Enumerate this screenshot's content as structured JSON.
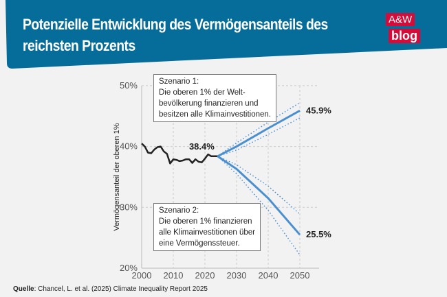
{
  "header": {
    "title": "Potenzielle Entwicklung des Vermögensanteils des reichsten Prozents",
    "logo_line1": "A&W",
    "logo_line2": "blog",
    "background": "#066c99",
    "logo_color": "#d50c3a"
  },
  "source": {
    "label": "Quelle",
    "text": ": Chancel, L. et al. (2025) Climate Inequality Report 2025"
  },
  "chart_data": {
    "type": "line",
    "title": "",
    "xlabel": "",
    "ylabel": "Vermögensanteil der oberen 1%",
    "xlim": [
      2000,
      2055
    ],
    "ylim": [
      20,
      50
    ],
    "x_ticks": [
      "2000",
      "2010",
      "2020",
      "2030",
      "2040",
      "2050"
    ],
    "y_ticks": [
      "20%",
      "30%",
      "40%",
      "50%"
    ],
    "grid": true,
    "series": [
      {
        "color": "#222222",
        "style": "solid",
        "x": [
          2000,
          2001,
          2002,
          2003,
          2004,
          2005,
          2006,
          2007,
          2008,
          2009,
          2010,
          2011,
          2012,
          2013,
          2014,
          2015,
          2016,
          2017,
          2018,
          2019,
          2020,
          2021,
          2022,
          2023,
          2024
        ],
        "y": [
          40.5,
          40.0,
          39.0,
          38.9,
          39.5,
          39.9,
          40.0,
          39.2,
          38.8,
          37.2,
          37.9,
          37.8,
          37.6,
          37.7,
          37.9,
          37.9,
          37.3,
          37.9,
          37.5,
          37.4,
          38.0,
          38.7,
          38.4,
          38.4,
          38.4
        ]
      },
      {
        "color": "#4a90d0",
        "style": "solid",
        "x": [
          2024,
          2030,
          2040,
          2050
        ],
        "y": [
          38.4,
          40.0,
          43.0,
          45.9
        ]
      },
      {
        "color": "#4a90d0",
        "style": "dotted",
        "x": [
          2024,
          2030,
          2040,
          2050
        ],
        "y": [
          38.4,
          40.6,
          44.0,
          47.2
        ]
      },
      {
        "color": "#4a90d0",
        "style": "dotted",
        "x": [
          2024,
          2030,
          2040,
          2050
        ],
        "y": [
          38.4,
          39.4,
          42.0,
          44.7
        ]
      },
      {
        "color": "#4a90d0",
        "style": "solid",
        "x": [
          2024,
          2030,
          2040,
          2050
        ],
        "y": [
          38.4,
          36.3,
          31.5,
          25.5
        ]
      },
      {
        "color": "#4a90d0",
        "style": "dotted",
        "x": [
          2024,
          2030,
          2040,
          2050
        ],
        "y": [
          38.4,
          37.0,
          33.5,
          28.9
        ]
      },
      {
        "color": "#4a90d0",
        "style": "dotted",
        "x": [
          2024,
          2030,
          2040,
          2050
        ],
        "y": [
          38.4,
          35.5,
          29.5,
          22.2
        ]
      }
    ],
    "annotations": [
      {
        "text": "38.4%",
        "x": 2020,
        "y": 38.4
      },
      {
        "text": "45.9%",
        "x": 2050,
        "y": 45.9
      },
      {
        "text": "25.5%",
        "x": 2050,
        "y": 25.5
      }
    ],
    "scenario1": {
      "title": "Szenario 1:",
      "lines": [
        "Die oberen 1% der Welt-",
        "bevölkerung finanzieren und",
        "besitzen alle Klimainvestitionen."
      ]
    },
    "scenario2": {
      "title": "Szenario 2:",
      "lines": [
        "Die oberen 1% finanzieren",
        "alle Klimainvestitionen über",
        "eine Vermögenssteuer."
      ]
    }
  }
}
